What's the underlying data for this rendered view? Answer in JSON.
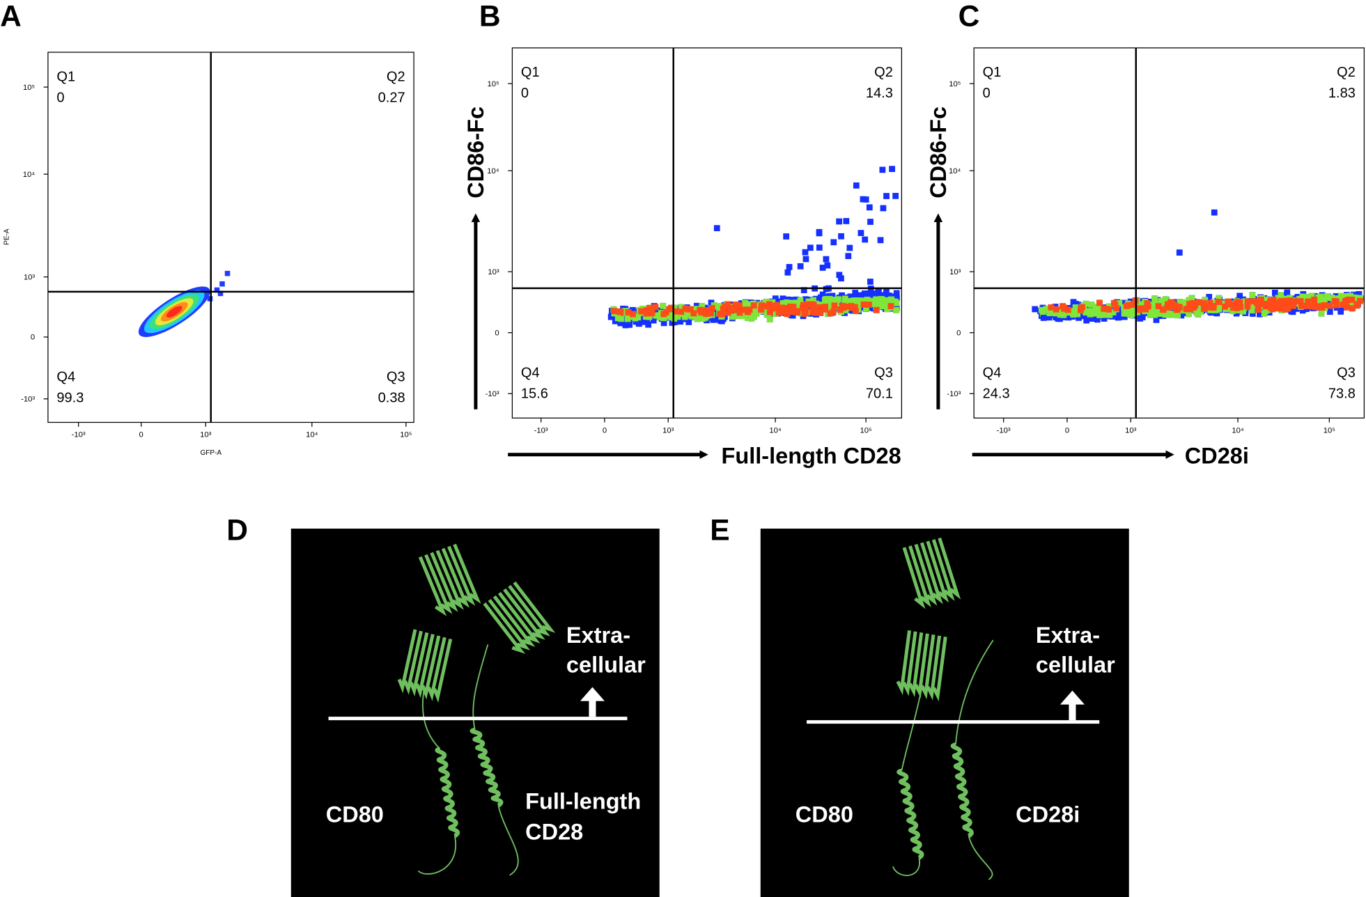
{
  "panels": [
    {
      "label": "A",
      "x_axis_label": "GFP-A",
      "y_axis_label": "PE-A",
      "quadrants": [
        {
          "name": "Q1",
          "value": 0
        },
        {
          "name": "Q2",
          "value": 0.27
        },
        {
          "name": "Q3",
          "value": 0.38
        },
        {
          "name": "Q4",
          "value": 99.3
        }
      ],
      "xticks": [
        "-10³",
        "0",
        "10³",
        "10⁴",
        "10⁵"
      ],
      "yticks": [
        "10⁵",
        "10⁴",
        "10³",
        "0",
        "-10³"
      ]
    },
    {
      "label": "B",
      "x_axis_label": "Full-length CD28",
      "y_axis_label": "CD86-Fc",
      "quadrants": [
        {
          "name": "Q1",
          "value": 0
        },
        {
          "name": "Q2",
          "value": 14.3
        },
        {
          "name": "Q3",
          "value": 70.1
        },
        {
          "name": "Q4",
          "value": 15.6
        }
      ],
      "xticks": [
        "-10³",
        "0",
        "10³",
        "10⁴",
        "10⁵"
      ],
      "yticks": [
        "10⁵",
        "10⁴",
        "10³",
        "0",
        "-10³"
      ]
    },
    {
      "label": "C",
      "x_axis_label": "CD28i",
      "y_axis_label": "CD86-Fc",
      "quadrants": [
        {
          "name": "Q1",
          "value": 0
        },
        {
          "name": "Q2",
          "value": 1.83
        },
        {
          "name": "Q3",
          "value": 73.8
        },
        {
          "name": "Q4",
          "value": 24.3
        }
      ],
      "xticks": [
        "-10³",
        "0",
        "10³",
        "10⁴",
        "10⁵"
      ],
      "yticks": [
        "10⁵",
        "10⁴",
        "10³",
        "0",
        "-10³"
      ]
    }
  ],
  "structures": [
    {
      "label": "D",
      "top_label": [
        "Extra-",
        "cellular"
      ],
      "left_label": "CD80",
      "right_label": [
        "Full-length",
        "CD28"
      ]
    },
    {
      "label": "E",
      "top_label": [
        "Extra-",
        "cellular"
      ],
      "left_label": "CD80",
      "right_label": [
        "CD28i"
      ]
    }
  ]
}
